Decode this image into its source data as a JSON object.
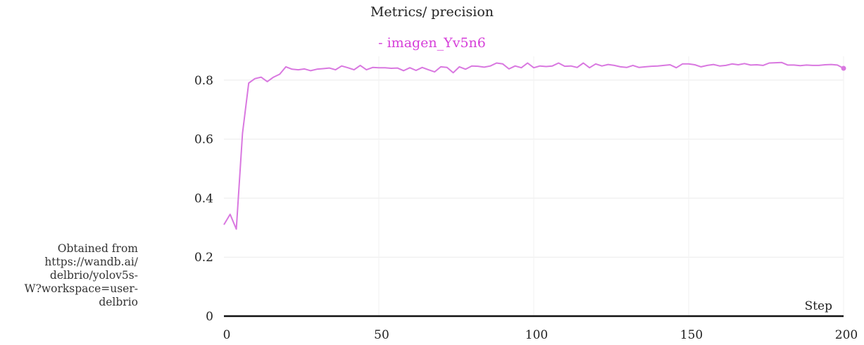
{
  "chart_data": {
    "type": "line",
    "title": "Metrics/ precision",
    "xlabel": "Step",
    "ylabel": "",
    "xlim": [
      0,
      200
    ],
    "ylim": [
      0,
      0.9
    ],
    "x_ticks": [
      "0",
      "50",
      "100",
      "150",
      "200"
    ],
    "y_ticks": [
      "0",
      "0.2",
      "0.4",
      "0.6",
      "0.8"
    ],
    "grid": true,
    "legend": {
      "placement": "top-center",
      "text": "- imagen_Yv5n6"
    },
    "series": [
      {
        "name": "imagen_Yv5n6",
        "color": "#d978e0",
        "x": [
          0,
          2,
          4,
          6,
          8,
          10,
          12,
          14,
          16,
          18,
          20,
          22,
          24,
          26,
          28,
          30,
          32,
          34,
          36,
          38,
          40,
          42,
          44,
          46,
          48,
          50,
          52,
          54,
          56,
          58,
          60,
          62,
          64,
          66,
          68,
          70,
          72,
          74,
          76,
          78,
          80,
          82,
          84,
          86,
          88,
          90,
          92,
          94,
          96,
          98,
          100,
          102,
          104,
          106,
          108,
          110,
          112,
          114,
          116,
          118,
          120,
          122,
          124,
          126,
          128,
          130,
          132,
          134,
          136,
          138,
          140,
          142,
          144,
          146,
          148,
          150,
          152,
          154,
          156,
          158,
          160,
          162,
          164,
          166,
          168,
          170,
          172,
          174,
          176,
          178,
          180,
          182,
          184,
          186,
          188,
          190,
          192,
          194,
          196,
          198,
          200
        ],
        "values": [
          0.31,
          0.345,
          0.295,
          0.62,
          0.79,
          0.805,
          0.81,
          0.795,
          0.81,
          0.82,
          0.845,
          0.837,
          0.835,
          0.838,
          0.832,
          0.837,
          0.839,
          0.841,
          0.835,
          0.848,
          0.842,
          0.835,
          0.85,
          0.835,
          0.843,
          0.842,
          0.842,
          0.84,
          0.841,
          0.832,
          0.842,
          0.833,
          0.843,
          0.835,
          0.828,
          0.845,
          0.843,
          0.825,
          0.845,
          0.837,
          0.848,
          0.847,
          0.844,
          0.848,
          0.858,
          0.855,
          0.838,
          0.848,
          0.842,
          0.858,
          0.842,
          0.848,
          0.846,
          0.848,
          0.858,
          0.847,
          0.848,
          0.843,
          0.858,
          0.842,
          0.855,
          0.848,
          0.853,
          0.85,
          0.845,
          0.843,
          0.85,
          0.843,
          0.845,
          0.847,
          0.848,
          0.85,
          0.852,
          0.842,
          0.855,
          0.855,
          0.852,
          0.845,
          0.85,
          0.853,
          0.848,
          0.85,
          0.855,
          0.852,
          0.856,
          0.851,
          0.852,
          0.85,
          0.858,
          0.859,
          0.86,
          0.851,
          0.851,
          0.849,
          0.851,
          0.85,
          0.85,
          0.852,
          0.853,
          0.851,
          0.84
        ]
      }
    ]
  },
  "source_note": {
    "lines": [
      "Obtained from",
      "https://wandb.ai/",
      "delbrio/yolov5s-",
      "W?workspace=user-",
      "delbrio"
    ]
  }
}
